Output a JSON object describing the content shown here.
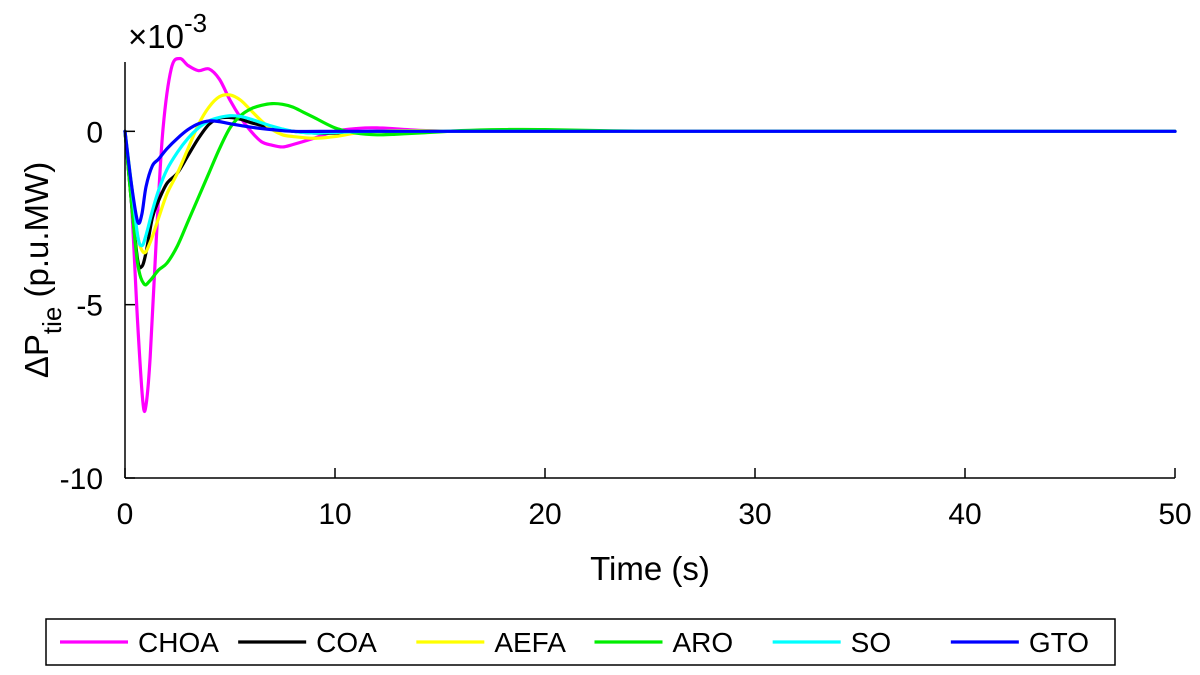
{
  "chart_data": {
    "type": "line",
    "xlabel": "Time (s)",
    "ylabel": {
      "prefix": "ΔP",
      "subscript": "tie",
      "suffix": " (p.u.MW)"
    },
    "exponent_label": {
      "prefix": "×10",
      "superscript": "-3"
    },
    "xlim": [
      0,
      50
    ],
    "ylim": [
      -10,
      2
    ],
    "xticks": [
      0,
      10,
      20,
      30,
      40,
      50
    ],
    "yticks": [
      0,
      -5,
      -10
    ],
    "grid": false,
    "legend_position": "bottom",
    "series": [
      {
        "name": "CHOA",
        "color": "#ff00ff",
        "x": [
          0,
          0.3,
          0.6,
          0.85,
          1.0,
          1.2,
          1.5,
          1.8,
          2.2,
          2.6,
          3.0,
          3.5,
          4.0,
          4.5,
          5.0,
          5.5,
          6.0,
          6.5,
          7.0,
          7.5,
          8.0,
          9.0,
          10.0,
          11.0,
          12.0,
          14.0,
          16.0,
          20.0,
          30.0,
          50.0
        ],
        "y": [
          0,
          -2.0,
          -5.5,
          -7.8,
          -7.9,
          -6.5,
          -3.0,
          0.0,
          1.8,
          2.1,
          1.9,
          1.75,
          1.8,
          1.5,
          0.9,
          0.4,
          0.0,
          -0.3,
          -0.4,
          -0.45,
          -0.38,
          -0.2,
          0.0,
          0.08,
          0.1,
          0.03,
          0.0,
          0.0,
          0.0,
          0.0
        ]
      },
      {
        "name": "COA",
        "color": "#000000",
        "x": [
          0,
          0.3,
          0.6,
          0.8,
          1.0,
          1.3,
          1.6,
          2.0,
          2.5,
          3.0,
          3.5,
          4.0,
          4.5,
          5.0,
          5.5,
          6.0,
          7.0,
          8.0,
          9.0,
          10.0,
          12.0,
          15.0,
          20.0,
          30.0,
          50.0
        ],
        "y": [
          0,
          -2.0,
          -3.7,
          -3.9,
          -3.5,
          -2.5,
          -2.0,
          -1.5,
          -1.2,
          -0.7,
          -0.2,
          0.2,
          0.38,
          0.4,
          0.35,
          0.25,
          0.1,
          0.0,
          -0.05,
          -0.05,
          0.0,
          0.0,
          0.0,
          0.0,
          0.0
        ]
      },
      {
        "name": "AEFA",
        "color": "#ffff00",
        "x": [
          0,
          0.3,
          0.6,
          0.9,
          1.2,
          1.6,
          2.0,
          2.5,
          3.0,
          3.5,
          4.0,
          4.5,
          5.0,
          5.5,
          6.0,
          6.5,
          7.0,
          7.5,
          8.0,
          9.0,
          10.0,
          11.0,
          12.0,
          14.0,
          16.0,
          20.0,
          30.0,
          50.0
        ],
        "y": [
          0,
          -1.5,
          -3.0,
          -3.5,
          -3.2,
          -2.5,
          -1.8,
          -1.2,
          -0.5,
          0.2,
          0.7,
          1.0,
          1.05,
          0.9,
          0.6,
          0.3,
          0.05,
          -0.1,
          -0.15,
          -0.2,
          -0.15,
          -0.05,
          0.0,
          0.02,
          0.0,
          0.0,
          0.0,
          0.0
        ]
      },
      {
        "name": "ARO",
        "color": "#00ee00",
        "x": [
          0,
          0.3,
          0.6,
          0.9,
          1.2,
          1.6,
          2.0,
          2.5,
          3.0,
          3.5,
          4.0,
          4.5,
          5.0,
          5.5,
          6.0,
          6.5,
          7.0,
          7.5,
          8.0,
          8.5,
          9.0,
          10.0,
          11.0,
          12.0,
          13.0,
          14.0,
          16.0,
          18.0,
          20.0,
          25.0,
          30.0,
          50.0
        ],
        "y": [
          0,
          -2.0,
          -3.8,
          -4.4,
          -4.3,
          -4.0,
          -3.8,
          -3.3,
          -2.6,
          -1.9,
          -1.2,
          -0.5,
          0.1,
          0.45,
          0.65,
          0.75,
          0.8,
          0.78,
          0.7,
          0.55,
          0.4,
          0.1,
          -0.05,
          -0.1,
          -0.08,
          -0.05,
          0.02,
          0.05,
          0.05,
          0.0,
          0.0,
          0.0
        ]
      },
      {
        "name": "SO",
        "color": "#00ffff",
        "x": [
          0,
          0.3,
          0.6,
          0.8,
          1.0,
          1.3,
          1.6,
          2.0,
          2.5,
          3.0,
          3.5,
          4.0,
          4.5,
          5.0,
          5.5,
          6.0,
          7.0,
          8.0,
          9.0,
          10.0,
          12.0,
          15.0,
          20.0,
          30.0,
          50.0
        ],
        "y": [
          0,
          -1.5,
          -3.0,
          -3.3,
          -3.0,
          -2.3,
          -1.7,
          -1.1,
          -0.6,
          -0.2,
          0.1,
          0.3,
          0.4,
          0.45,
          0.43,
          0.35,
          0.15,
          0.0,
          -0.05,
          -0.03,
          0.0,
          0.0,
          0.0,
          0.0,
          0.0
        ]
      },
      {
        "name": "GTO",
        "color": "#0000ff",
        "x": [
          0,
          0.3,
          0.6,
          0.8,
          1.0,
          1.3,
          1.6,
          2.0,
          2.5,
          3.0,
          3.5,
          4.0,
          4.5,
          5.0,
          6.0,
          7.0,
          8.0,
          10.0,
          12.0,
          15.0,
          20.0,
          30.0,
          50.0
        ],
        "y": [
          0,
          -1.5,
          -2.6,
          -2.4,
          -1.6,
          -1.0,
          -0.8,
          -0.5,
          -0.2,
          0.05,
          0.22,
          0.3,
          0.28,
          0.22,
          0.12,
          0.05,
          0.0,
          0.0,
          0.0,
          0.0,
          0.0,
          0.0,
          0.0
        ]
      }
    ]
  }
}
